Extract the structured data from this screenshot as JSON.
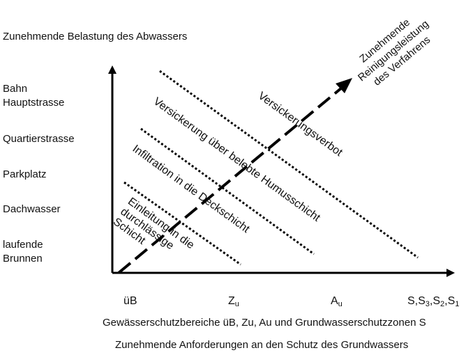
{
  "y_axis_title": "Zunehmende Belastung des Abwassers",
  "y_categories": [
    {
      "line1": "Bahn",
      "line2": "Hauptstrasse"
    },
    {
      "line1": "Quartierstrasse",
      "line2": ""
    },
    {
      "line1": "Parkplatz",
      "line2": ""
    },
    {
      "line1": "Dachwasser",
      "line2": ""
    },
    {
      "line1": "laufende",
      "line2": "Brunnen"
    }
  ],
  "x_categories": {
    "ub": "üB",
    "zu_base": "Z",
    "zu_sub": "u",
    "au_base": "A",
    "au_sub": "u",
    "s_1": "S,S",
    "s_sub3": "3",
    "s_2": ",S",
    "s_sub2": "2",
    "s_3": ",S",
    "s_sub1": "1"
  },
  "x_axis_title": "Gewässerschutzbereiche üB, Zu, Au und Grundwasserschutzzonen S",
  "x_axis_subtitle": "Zunehmende Anforderungen an den Schutz des Grundwassers",
  "arrow_label": {
    "line1": "Zunehmende",
    "line2": "Reinigungsleistung",
    "line3": "des Verfahrens"
  },
  "zones": {
    "verbot": "Versickerungsverbot",
    "humus": "Versickerung über belebte Humusschicht",
    "deckschicht": "Infiltration in die Deckschicht",
    "einleitung_1": "Einleitung in die",
    "einleitung_2": "durchlässige",
    "einleitung_3": "Schicht"
  }
}
